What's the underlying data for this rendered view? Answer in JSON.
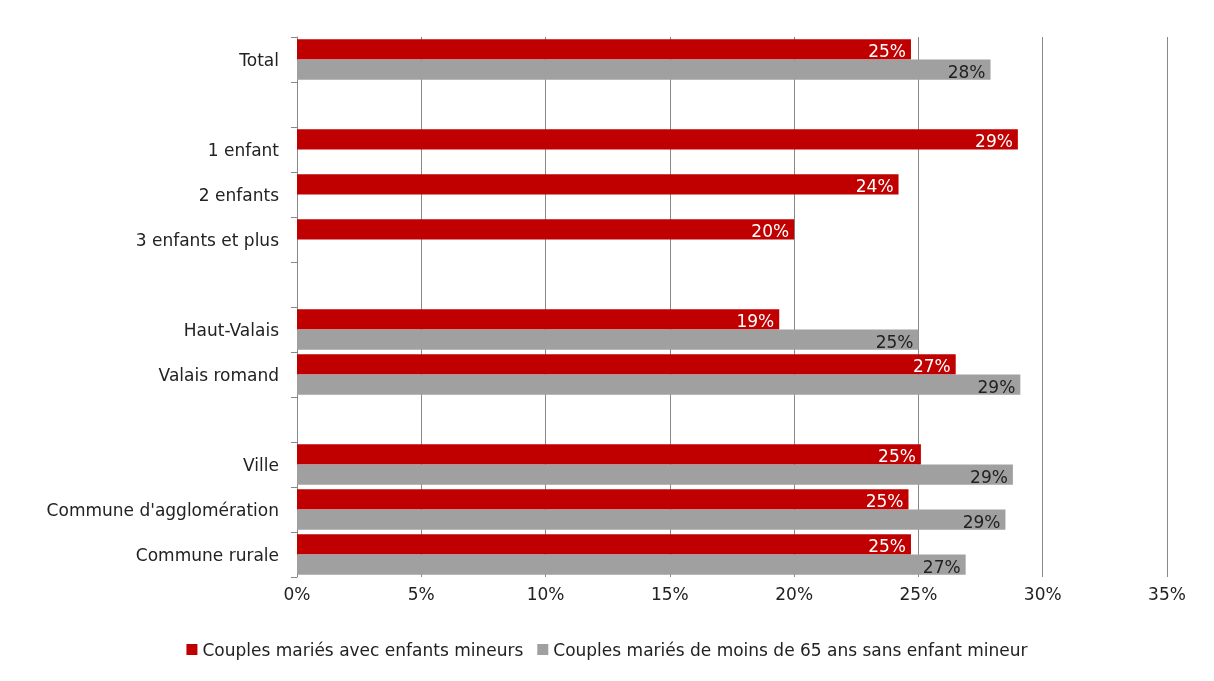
{
  "chart_data": {
    "type": "bar",
    "orientation": "horizontal",
    "categories": [
      "Total",
      null,
      "1 enfant",
      "2 enfants",
      "3 enfants et plus",
      null,
      "Haut-Valais",
      "Valais romand",
      null,
      "Ville",
      "Commune d'agglomération",
      "Commune rurale"
    ],
    "series": [
      {
        "name": "Couples mariés avec enfants mineurs",
        "color": "#c00000",
        "values": [
          24.7,
          null,
          29.0,
          24.2,
          20.0,
          null,
          19.4,
          26.5,
          null,
          25.1,
          24.6,
          24.7
        ],
        "value_labels": [
          "25%",
          null,
          "29%",
          "24%",
          "20%",
          null,
          "19%",
          "27%",
          null,
          "25%",
          "25%",
          "25%"
        ]
      },
      {
        "name": "Couples mariés de moins de 65 ans sans enfant mineur",
        "color": "#a0a0a0",
        "values": [
          27.9,
          null,
          null,
          null,
          null,
          null,
          25.0,
          29.1,
          null,
          28.8,
          28.5,
          26.9
        ],
        "value_labels": [
          "28%",
          null,
          null,
          null,
          null,
          null,
          "25%",
          "29%",
          null,
          "29%",
          "29%",
          "27%"
        ]
      }
    ],
    "xlim": [
      0,
      35
    ],
    "xticks": [
      {
        "value": 0,
        "label": "0%"
      },
      {
        "value": 5,
        "label": "5%"
      },
      {
        "value": 10,
        "label": "10%"
      },
      {
        "value": 15,
        "label": "15%"
      },
      {
        "value": 20,
        "label": "20%"
      },
      {
        "value": 25,
        "label": "25%"
      },
      {
        "value": 30,
        "label": "30%"
      },
      {
        "value": 35,
        "label": "35%"
      }
    ],
    "grid": "x",
    "legend": "bottom"
  }
}
